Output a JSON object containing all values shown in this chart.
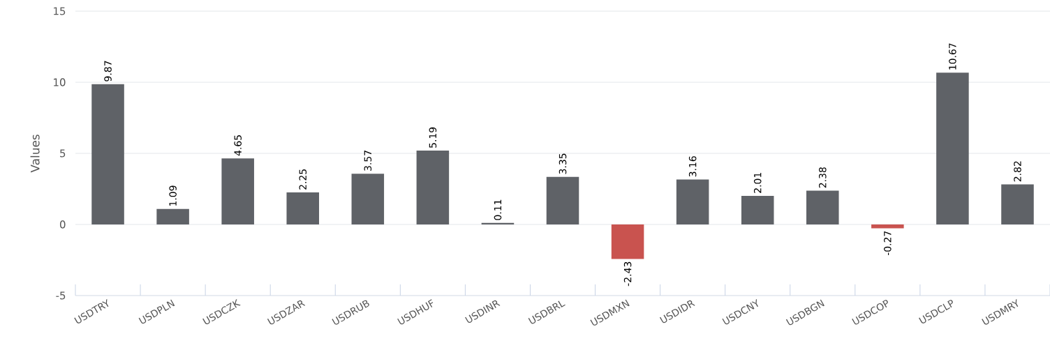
{
  "chart_data": {
    "type": "bar",
    "ylabel": "Values",
    "categories": [
      "USDTRY",
      "USDPLN",
      "USDCZK",
      "USDZAR",
      "USDRUB",
      "USDHUF",
      "USDINR",
      "USDBRL",
      "USDMXN",
      "USDIDR",
      "USDCNY",
      "USDBGN",
      "USDCOP",
      "USDCLP",
      "USDMRY"
    ],
    "values": [
      9.87,
      1.09,
      4.65,
      2.25,
      3.57,
      5.19,
      0.11,
      3.35,
      -2.43,
      3.16,
      2.01,
      2.38,
      -0.27,
      10.67,
      2.82
    ],
    "colors": [
      "#5f6267",
      "#5f6267",
      "#5f6267",
      "#5f6267",
      "#5f6267",
      "#5f6267",
      "#5f6267",
      "#5f6267",
      "#c9534f",
      "#5f6267",
      "#5f6267",
      "#5f6267",
      "#c9534f",
      "#5f6267",
      "#5f6267"
    ],
    "ylim": [
      -5,
      15
    ],
    "yticks": [
      -5,
      0,
      5,
      10,
      15
    ],
    "grid": "y",
    "data_labels": true
  }
}
